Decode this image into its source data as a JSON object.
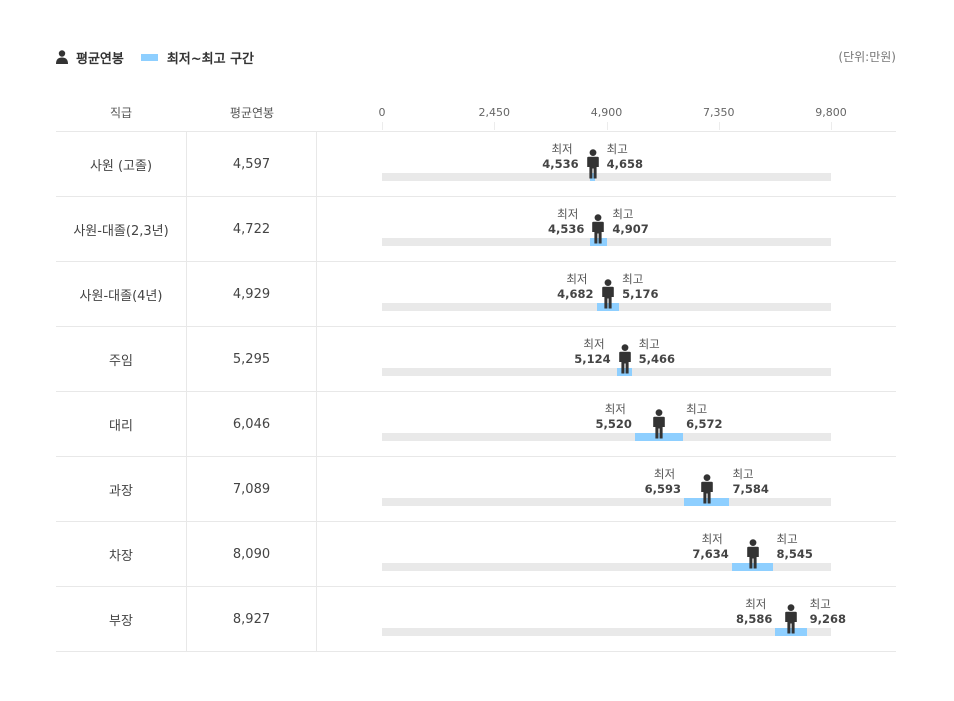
{
  "legend": {
    "avg_label": "평균연봉",
    "range_label": "최저~최고 구간"
  },
  "unit": "(단위:만원)",
  "header": {
    "grade": "직급",
    "avg": "평균연봉"
  },
  "labels": {
    "min": "최저",
    "max": "최고"
  },
  "colors": {
    "range": "#8ecfff",
    "track": "#e9e9e9",
    "icon": "#333333"
  },
  "chart_data": {
    "type": "range-bar",
    "unit": "(단위:만원)",
    "axis": {
      "min": 0,
      "max": 9800,
      "ticks": [
        0,
        2450,
        4900,
        7350,
        9800
      ],
      "tick_labels": [
        "0",
        "2,450",
        "4,900",
        "7,350",
        "9,800"
      ]
    },
    "rows": [
      {
        "grade": "사원 (고졸)",
        "avg": 4597,
        "avg_label": "4,597",
        "min": 4536,
        "min_label": "4,536",
        "max": 4658,
        "max_label": "4,658"
      },
      {
        "grade": "사원-대졸(2,3년)",
        "avg": 4722,
        "avg_label": "4,722",
        "min": 4536,
        "min_label": "4,536",
        "max": 4907,
        "max_label": "4,907"
      },
      {
        "grade": "사원-대졸(4년)",
        "avg": 4929,
        "avg_label": "4,929",
        "min": 4682,
        "min_label": "4,682",
        "max": 5176,
        "max_label": "5,176"
      },
      {
        "grade": "주임",
        "avg": 5295,
        "avg_label": "5,295",
        "min": 5124,
        "min_label": "5,124",
        "max": 5466,
        "max_label": "5,466"
      },
      {
        "grade": "대리",
        "avg": 6046,
        "avg_label": "6,046",
        "min": 5520,
        "min_label": "5,520",
        "max": 6572,
        "max_label": "6,572"
      },
      {
        "grade": "과장",
        "avg": 7089,
        "avg_label": "7,089",
        "min": 6593,
        "min_label": "6,593",
        "max": 7584,
        "max_label": "7,584"
      },
      {
        "grade": "차장",
        "avg": 8090,
        "avg_label": "8,090",
        "min": 7634,
        "min_label": "7,634",
        "max": 8545,
        "max_label": "8,545"
      },
      {
        "grade": "부장",
        "avg": 8927,
        "avg_label": "8,927",
        "min": 8586,
        "min_label": "8,586",
        "max": 9268,
        "max_label": "9,268"
      }
    ]
  }
}
